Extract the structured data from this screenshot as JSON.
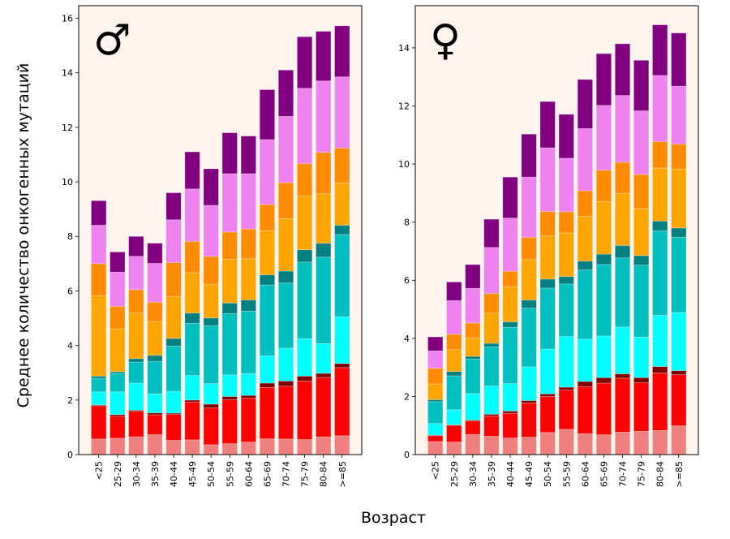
{
  "figure": {
    "ylabel": "Среднее количество онкогенных мутаций",
    "xlabel": "Возраст",
    "background": "#fff5ee"
  },
  "chart_data": [
    {
      "type": "bar",
      "stacked": true,
      "panel_symbol": "♂",
      "categories": [
        "<25",
        "25-29",
        "30-34",
        "35-39",
        "40-44",
        "45-49",
        "50-54",
        "55-59",
        "60-64",
        "65-69",
        "70-74",
        "75-79",
        "80-84",
        ">=85"
      ],
      "ylim": [
        0,
        16.46
      ],
      "yticks": [
        0,
        2,
        4,
        6,
        8,
        10,
        12,
        14,
        16
      ],
      "grid": false,
      "series": [
        {
          "color": "#f08080",
          "values": [
            0.57,
            0.6,
            0.65,
            0.73,
            0.52,
            0.54,
            0.36,
            0.4,
            0.46,
            0.58,
            0.57,
            0.55,
            0.65,
            0.69
          ]
        },
        {
          "color": "#ff0000",
          "values": [
            1.22,
            0.81,
            0.94,
            0.73,
            0.95,
            1.39,
            1.35,
            1.61,
            1.61,
            1.88,
            1.94,
            2.15,
            2.18,
            2.5
          ]
        },
        {
          "color": "#800000",
          "values": [
            0.03,
            0.06,
            0.04,
            0.07,
            0.05,
            0.07,
            0.14,
            0.12,
            0.1,
            0.16,
            0.19,
            0.18,
            0.15,
            0.15
          ]
        },
        {
          "color": "#00ffff",
          "values": [
            0.48,
            0.83,
            0.99,
            0.69,
            0.8,
            0.9,
            0.75,
            0.79,
            0.8,
            1.0,
            1.2,
            1.37,
            1.09,
            1.72
          ]
        },
        {
          "color": "#00bfbf",
          "values": [
            0.5,
            0.68,
            0.77,
            1.2,
            1.66,
            1.91,
            2.13,
            2.25,
            2.29,
            2.6,
            2.39,
            2.81,
            3.17,
            3.01
          ]
        },
        {
          "color": "#008080",
          "values": [
            0.08,
            0.06,
            0.13,
            0.22,
            0.28,
            0.38,
            0.28,
            0.39,
            0.41,
            0.37,
            0.44,
            0.45,
            0.51,
            0.34
          ]
        },
        {
          "color": "#ffa500",
          "values": [
            2.95,
            1.57,
            1.67,
            1.24,
            1.54,
            1.48,
            1.24,
            1.6,
            1.51,
            1.62,
            1.92,
            1.98,
            1.82,
            1.55
          ]
        },
        {
          "color": "#ff8c00",
          "values": [
            1.17,
            0.83,
            0.86,
            0.71,
            1.24,
            1.15,
            1.02,
            1.0,
            1.09,
            0.96,
            1.32,
            1.18,
            1.51,
            1.28
          ]
        },
        {
          "color": "#ee82ee",
          "values": [
            1.41,
            1.25,
            1.22,
            1.42,
            1.57,
            1.92,
            1.87,
            2.14,
            2.03,
            2.38,
            2.43,
            2.76,
            2.62,
            2.61
          ]
        },
        {
          "color": "#800080",
          "values": [
            0.9,
            0.74,
            0.73,
            0.74,
            0.99,
            1.36,
            1.34,
            1.5,
            1.38,
            1.83,
            1.7,
            1.89,
            1.82,
            1.87
          ]
        }
      ]
    },
    {
      "type": "bar",
      "stacked": true,
      "panel_symbol": "♀",
      "categories": [
        "<25",
        "25-29",
        "30-34",
        "35-39",
        "40-44",
        "45-49",
        "50-54",
        "55-59",
        "60-64",
        "65-69",
        "70-74",
        "75-79",
        "80-84",
        ">=85"
      ],
      "ylim": [
        0,
        15.45
      ],
      "yticks": [
        0,
        2,
        4,
        6,
        8,
        10,
        12,
        14
      ],
      "grid": false,
      "series": [
        {
          "color": "#f08080",
          "values": [
            0.45,
            0.43,
            0.69,
            0.63,
            0.57,
            0.6,
            0.76,
            0.87,
            0.72,
            0.68,
            0.77,
            0.8,
            0.83,
            0.99
          ]
        },
        {
          "color": "#ff0000",
          "values": [
            0.2,
            0.58,
            0.47,
            0.7,
            0.85,
            1.18,
            1.24,
            1.35,
            1.62,
            1.78,
            1.86,
            1.67,
            1.98,
            1.76
          ]
        },
        {
          "color": "#800000",
          "values": [
            0.02,
            0.01,
            0.03,
            0.06,
            0.08,
            0.08,
            0.09,
            0.1,
            0.18,
            0.19,
            0.15,
            0.18,
            0.22,
            0.14
          ]
        },
        {
          "color": "#00ffff",
          "values": [
            0.4,
            0.52,
            0.91,
            0.97,
            0.94,
            1.16,
            1.54,
            1.74,
            1.45,
            1.43,
            1.61,
            1.39,
            1.76,
            2.0
          ]
        },
        {
          "color": "#00bfbf",
          "values": [
            0.75,
            1.17,
            1.19,
            1.35,
            1.94,
            2.02,
            2.1,
            1.81,
            2.39,
            2.46,
            2.38,
            2.48,
            2.91,
            2.59
          ]
        },
        {
          "color": "#008080",
          "values": [
            0.07,
            0.15,
            0.09,
            0.12,
            0.19,
            0.28,
            0.31,
            0.26,
            0.3,
            0.36,
            0.43,
            0.33,
            0.34,
            0.32
          ]
        },
        {
          "color": "#ffa500",
          "values": [
            0.54,
            0.75,
            0.64,
            1.04,
            1.21,
            1.39,
            1.49,
            1.5,
            1.54,
            1.81,
            1.79,
            1.62,
            1.82,
            2.03
          ]
        },
        {
          "color": "#ff8c00",
          "values": [
            0.54,
            0.53,
            0.51,
            0.68,
            0.53,
            0.77,
            0.84,
            0.73,
            0.88,
            1.08,
            1.07,
            1.17,
            0.91,
            0.86
          ]
        },
        {
          "color": "#ee82ee",
          "values": [
            0.6,
            1.16,
            1.19,
            1.58,
            1.83,
            2.07,
            2.19,
            1.84,
            2.14,
            2.23,
            2.3,
            2.19,
            2.28,
            1.99
          ]
        },
        {
          "color": "#800080",
          "values": [
            0.48,
            0.64,
            0.82,
            0.97,
            1.41,
            1.48,
            1.59,
            1.51,
            1.69,
            1.78,
            1.78,
            1.74,
            1.74,
            1.83
          ]
        }
      ]
    }
  ]
}
